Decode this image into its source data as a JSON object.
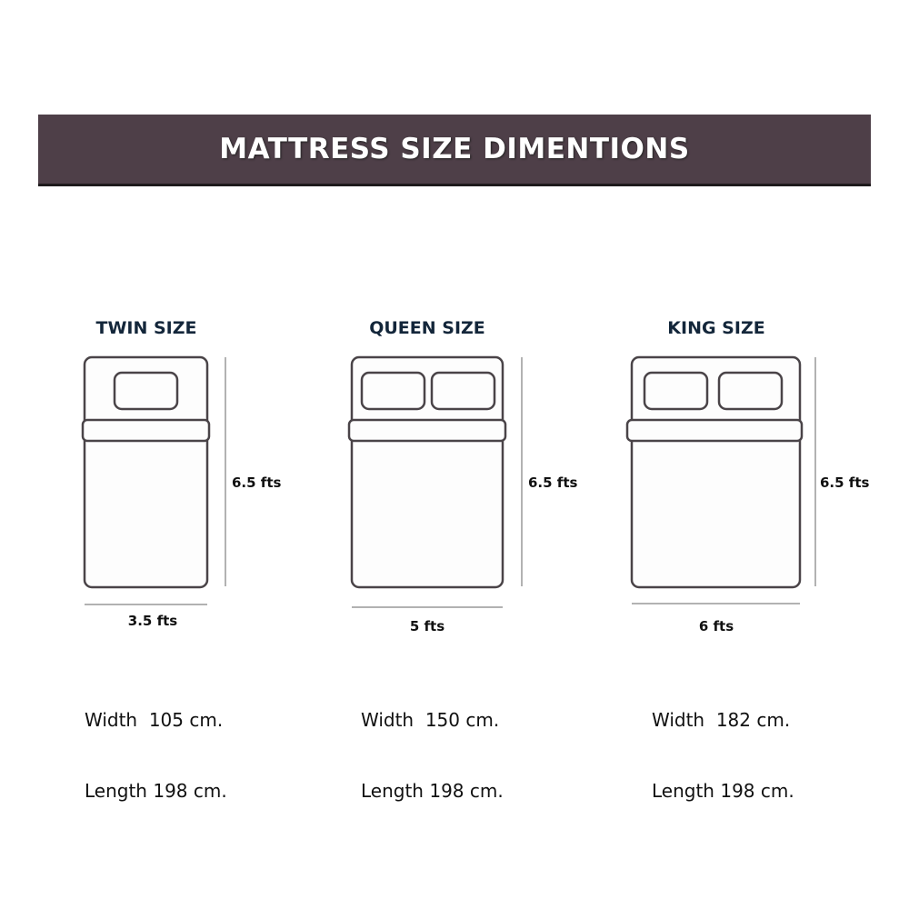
{
  "header": {
    "title": "MATTRESS SIZE DIMENTIONS"
  },
  "sizes": [
    {
      "name": "TWIN SIZE",
      "length_label": "6.5 fts",
      "width_label": "3.5 fts",
      "pillows": 1,
      "width_text": "Width  105 cm.",
      "length_text": "Length 198 cm."
    },
    {
      "name": "QUEEN SIZE",
      "length_label": "6.5 fts",
      "width_label": "5 fts",
      "pillows": 2,
      "width_text": "Width  150 cm.",
      "length_text": "Length 198 cm."
    },
    {
      "name": "KING SIZE",
      "length_label": "6.5 fts",
      "width_label": "6 fts",
      "pillows": 2,
      "width_text": "Width  182 cm.",
      "length_text": "Length 198 cm."
    }
  ],
  "colors": {
    "banner": "#4e3f48",
    "title_text": "#13263a",
    "outline": "#4a4448"
  }
}
